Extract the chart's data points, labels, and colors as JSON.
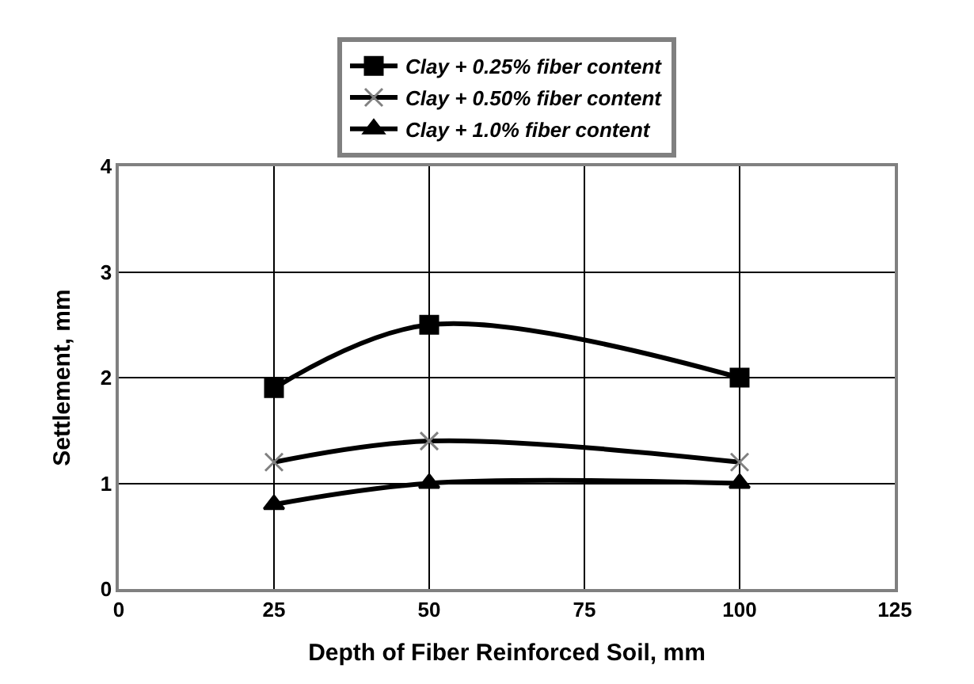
{
  "chart_data": {
    "type": "line",
    "xlabel": "Depth of Fiber Reinforced Soil, mm",
    "ylabel": "Settlement, mm",
    "x": [
      25,
      50,
      100
    ],
    "series": [
      {
        "name": "Clay + 0.25% fiber content",
        "color": "#000000",
        "marker": "square",
        "values": [
          1.9,
          2.5,
          2.0
        ]
      },
      {
        "name": "Clay + 0.50% fiber content",
        "color": "#000000",
        "marker": "cross",
        "values": [
          1.2,
          1.4,
          1.2
        ]
      },
      {
        "name": "Clay + 1.0% fiber content",
        "color": "#000000",
        "marker": "triangle",
        "values": [
          0.8,
          1.0,
          1.0
        ]
      }
    ],
    "xlim": [
      0,
      125
    ],
    "xticks": [
      0,
      25,
      50,
      75,
      100,
      125
    ],
    "ylim": [
      0,
      4
    ],
    "yticks": [
      0,
      1,
      2,
      3,
      4
    ],
    "grid": true,
    "legend": "top",
    "line_style": "solid"
  }
}
